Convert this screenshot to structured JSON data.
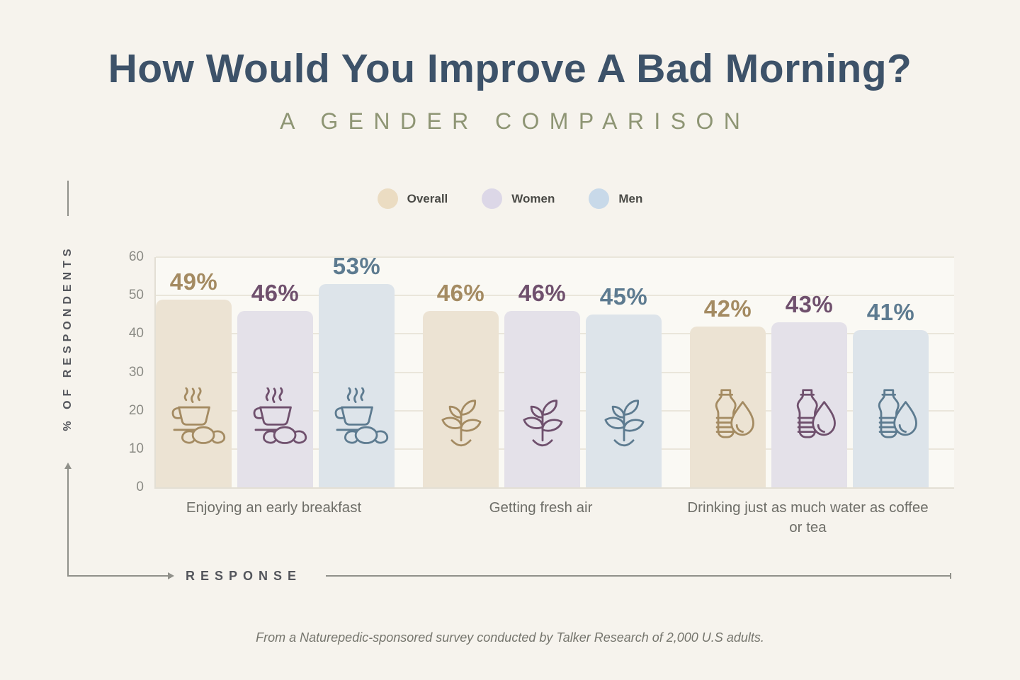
{
  "source": {
    "text": "From a Naturepedic-sponsored survey conducted by Talker Research of 2,000 U.S adults."
  },
  "chart_data": {
    "type": "bar",
    "title": "How Would You Improve A Bad Morning?",
    "subtitle": "A GENDER COMPARISON",
    "categories": [
      "Enjoying an early breakfast",
      "Getting fresh air",
      "Drinking just as much water as coffee or tea"
    ],
    "category_icons": [
      "coffee-croissant-icon",
      "sprout-icon",
      "water-bottle-drop-icon"
    ],
    "series": [
      {
        "name": "Overall",
        "values": [
          49,
          46,
          42
        ],
        "fill": "#ece3d3",
        "accent": "#a48b62",
        "legend_swatch": "#ebdcc2"
      },
      {
        "name": "Women",
        "values": [
          46,
          46,
          43
        ],
        "fill": "#e4e1e9",
        "accent": "#6f506d",
        "legend_swatch": "#dcd7e7"
      },
      {
        "name": "Men",
        "values": [
          53,
          45,
          41
        ],
        "fill": "#dde4ea",
        "accent": "#5d7b90",
        "legend_swatch": "#c8d9e9"
      }
    ],
    "value_suffix": "%",
    "ylabel": "% OF RESPONDENTS",
    "xlabel": "RESPONSE",
    "y_ticks": [
      0,
      10,
      20,
      30,
      40,
      50,
      60
    ],
    "ylim": [
      0,
      60
    ],
    "grid": true,
    "legend_position": "top"
  }
}
